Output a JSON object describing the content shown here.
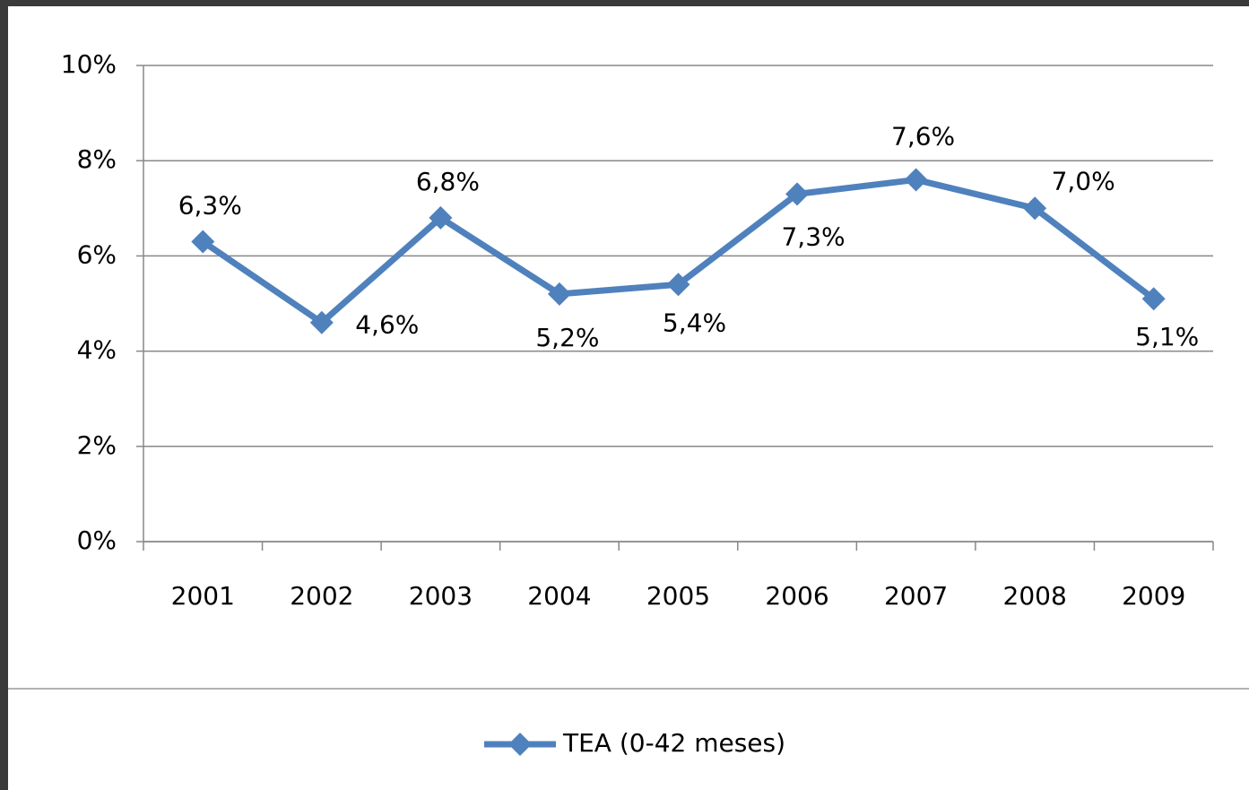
{
  "chart_data": {
    "type": "line",
    "categories": [
      "2001",
      "2002",
      "2003",
      "2004",
      "2005",
      "2006",
      "2007",
      "2008",
      "2009"
    ],
    "series": [
      {
        "name": "TEA (0-42 meses)",
        "color": "#4f81bd",
        "values": [
          6.3,
          4.6,
          6.8,
          5.2,
          5.4,
          7.3,
          7.6,
          7.0,
          5.1
        ],
        "value_labels": [
          "6,3%",
          "4,6%",
          "6,8%",
          "5,2%",
          "5,4%",
          "7,3%",
          "7,6%",
          "7,0%",
          "5,1%"
        ]
      }
    ],
    "ylim": [
      0,
      10
    ],
    "yticks": [
      {
        "value": 0,
        "label": "0%"
      },
      {
        "value": 2,
        "label": "2%"
      },
      {
        "value": 4,
        "label": "4%"
      },
      {
        "value": 6,
        "label": "6%"
      },
      {
        "value": 8,
        "label": "8%"
      },
      {
        "value": 10,
        "label": "10%"
      }
    ],
    "grid": true,
    "legend": "bottom"
  }
}
